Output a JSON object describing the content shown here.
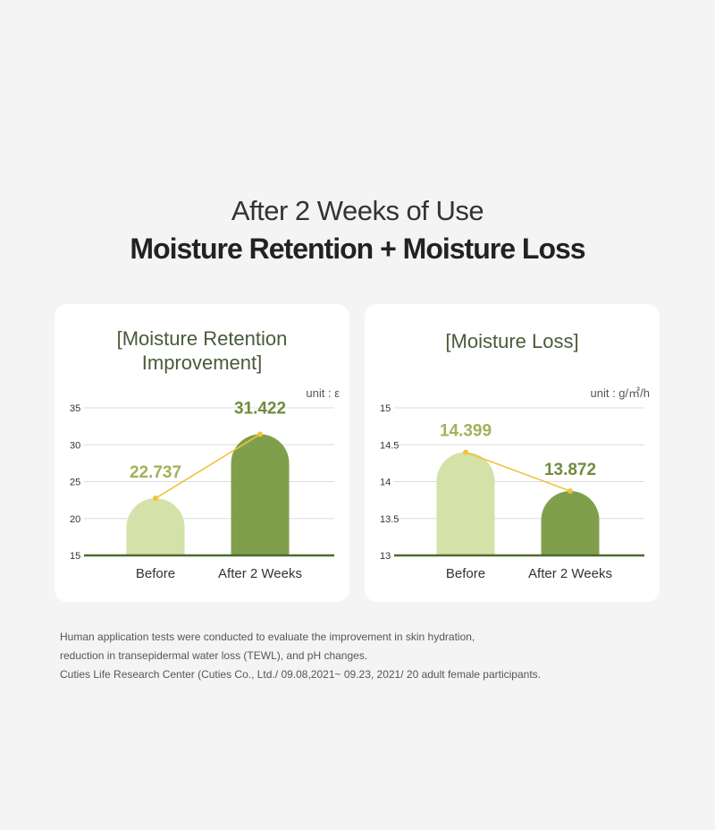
{
  "header": {
    "subtitle": "After 2 Weeks of Use",
    "title": "Moisture Retention + Moisture Loss"
  },
  "colors": {
    "before_bar": "#d4e1a8",
    "after_bar": "#809f4d",
    "trend_line": "#f2c23a",
    "baseline": "#4d6a2e",
    "before_label": "#9fb35a",
    "after_label": "#6f8c3e"
  },
  "chart_data": [
    {
      "type": "bar",
      "title": "[Moisture Retention\nImprovement]",
      "unit": "unit : ε",
      "categories": [
        "Before",
        "After 2 Weeks"
      ],
      "values": [
        22.737,
        31.422
      ],
      "value_labels": [
        "22.737",
        "31.422"
      ],
      "ylim": [
        15,
        35
      ],
      "yticks": [
        "15",
        "20",
        "25",
        "30",
        "35"
      ],
      "ytick_values": [
        15,
        20,
        25,
        30,
        35
      ],
      "grid": true
    },
    {
      "type": "bar",
      "title": "[Moisture Loss]",
      "unit": "unit : g/㎡/h",
      "categories": [
        "Before",
        "After 2 Weeks"
      ],
      "values": [
        14.399,
        13.872
      ],
      "value_labels": [
        "14.399",
        "13.872"
      ],
      "ylim": [
        13,
        15
      ],
      "yticks": [
        "13",
        "13.5",
        "14",
        "14.5",
        "15"
      ],
      "ytick_values": [
        13,
        13.5,
        14,
        14.5,
        15
      ],
      "grid": true
    }
  ],
  "footnote": {
    "line1": "Human application tests were conducted to evaluate the improvement in skin hydration,",
    "line2": "reduction in transepidermal water loss (TEWL), and pH changes.",
    "line3": "Cuties Life Research Center (Cuties Co., Ltd./ 09.08,2021~ 09.23, 2021/ 20 adult female participants."
  }
}
